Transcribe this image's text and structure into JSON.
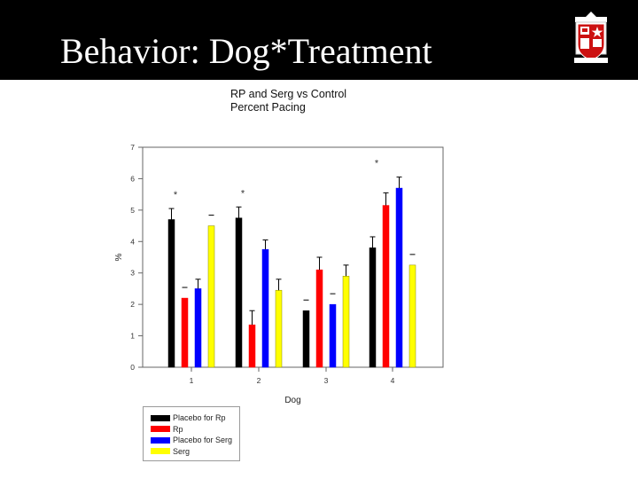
{
  "slide": {
    "title": "Behavior: Dog*Treatment",
    "logo_icon": "university-crest-icon"
  },
  "chart_data": {
    "type": "bar",
    "title_lines": [
      "RP and Serg vs Control",
      "Percent Pacing"
    ],
    "xlabel": "Dog",
    "ylabel": "%",
    "categories": [
      "1",
      "2",
      "3",
      "4"
    ],
    "yticks": [
      "0",
      "1",
      "2",
      "3",
      "4",
      "5",
      "6",
      "7"
    ],
    "ylim": [
      0,
      7
    ],
    "grid": false,
    "legend_position": "below-left",
    "series": [
      {
        "name": "Placebo for Rp",
        "color": "#000000",
        "values": [
          4.7,
          4.75,
          1.8,
          3.8
        ],
        "errors": [
          0.35,
          0.35,
          0,
          0.35
        ]
      },
      {
        "name": "Rp",
        "color": "#ff0000",
        "values": [
          2.2,
          1.35,
          3.1,
          5.15
        ],
        "errors": [
          0,
          0.45,
          0.4,
          0.4
        ]
      },
      {
        "name": "Placebo for Serg",
        "color": "#0000ff",
        "values": [
          2.5,
          3.75,
          2.0,
          5.7
        ],
        "errors": [
          0.3,
          0.3,
          0,
          0.35
        ]
      },
      {
        "name": "Serg",
        "color": "#ffff00",
        "values": [
          4.5,
          2.45,
          2.9,
          3.25
        ],
        "errors": [
          0,
          0.35,
          0.35,
          0
        ]
      }
    ],
    "annotations": [
      {
        "text": "*",
        "category": "1"
      },
      {
        "text": "*",
        "category": "2"
      },
      {
        "text": "*",
        "category": "4"
      }
    ]
  }
}
